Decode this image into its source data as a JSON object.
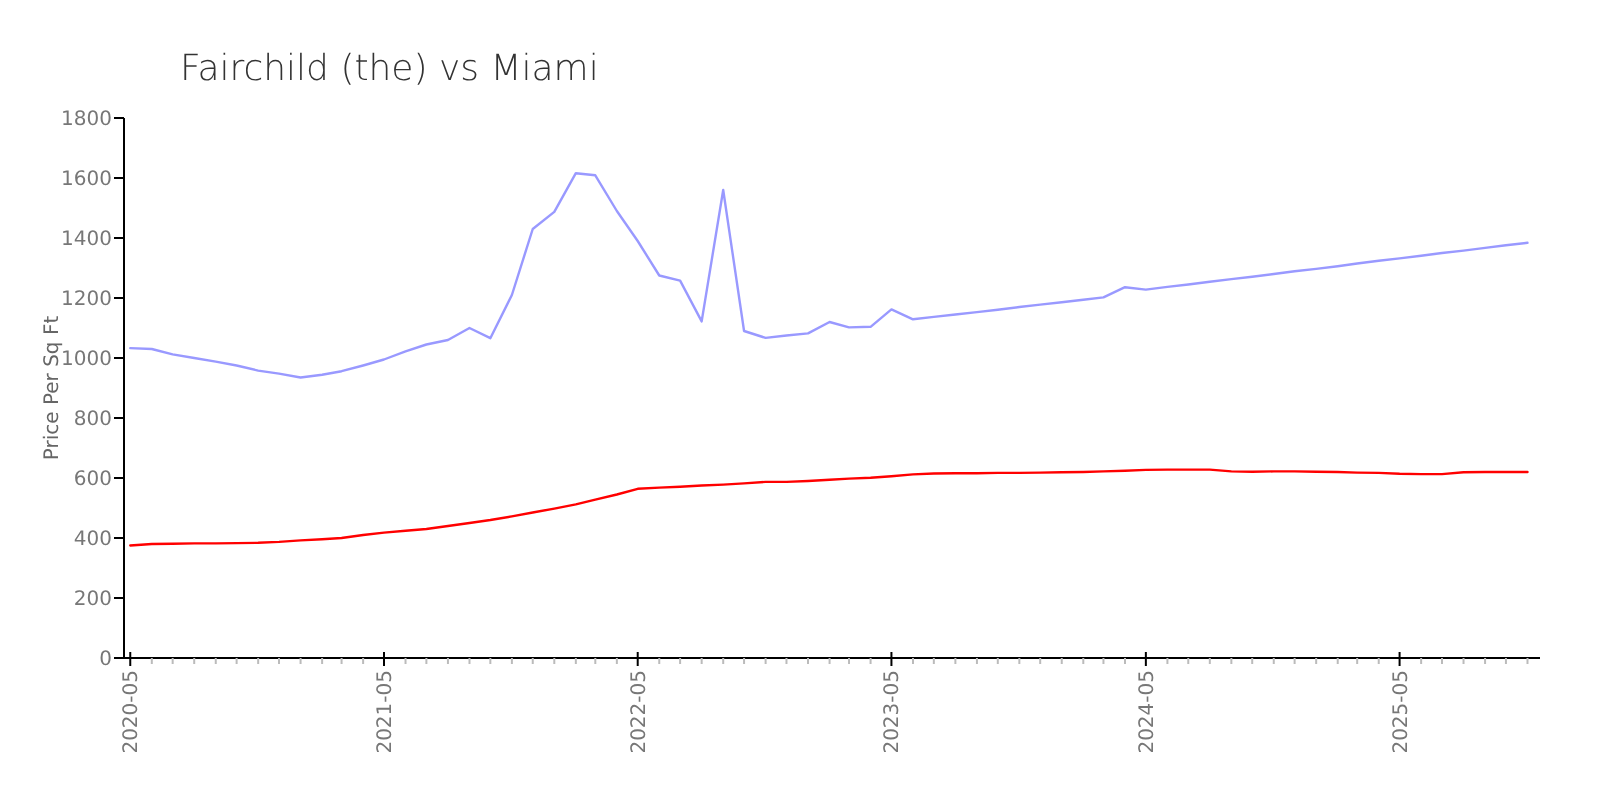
{
  "chart_data": {
    "type": "line",
    "title": "Fairchild (the) vs Miami",
    "ylabel": "Price Per Sq Ft",
    "x": [
      "2020-05",
      "2020-06",
      "2020-07",
      "2020-08",
      "2020-09",
      "2020-10",
      "2020-11",
      "2020-12",
      "2021-01",
      "2021-02",
      "2021-03",
      "2021-04",
      "2021-05",
      "2021-06",
      "2021-07",
      "2021-08",
      "2021-09",
      "2021-10",
      "2021-11",
      "2021-12",
      "2022-01",
      "2022-02",
      "2022-03",
      "2022-04",
      "2022-05",
      "2022-06",
      "2022-07",
      "2022-08",
      "2022-09",
      "2022-10",
      "2022-11",
      "2022-12",
      "2023-01",
      "2023-02",
      "2023-03",
      "2023-04",
      "2023-05",
      "2023-06",
      "2023-07",
      "2023-08",
      "2023-09",
      "2023-10",
      "2023-11",
      "2023-12",
      "2024-01",
      "2024-02",
      "2024-03",
      "2024-04",
      "2024-05",
      "2024-06",
      "2024-07",
      "2024-08",
      "2024-09",
      "2024-10",
      "2024-11",
      "2024-12",
      "2025-01",
      "2025-02",
      "2025-03",
      "2025-04",
      "2025-05",
      "2025-06",
      "2025-07",
      "2025-08",
      "2025-09",
      "2025-10",
      "2025-11"
    ],
    "series": [
      {
        "color": "#9999ff",
        "values": [
          1033,
          1030,
          1012,
          1000,
          988,
          975,
          958,
          948,
          935,
          944,
          956,
          975,
          995,
          1022,
          1045,
          1060,
          1100,
          1066,
          1210,
          1430,
          1487,
          1616,
          1609,
          1490,
          1390,
          1275,
          1258,
          1122,
          1560,
          1090,
          1067,
          1075,
          1082,
          1120,
          1102,
          1104,
          1162,
          1129,
          1137,
          1145,
          1153,
          1161,
          1170,
          1178,
          1186,
          1194,
          1202,
          1236,
          1228,
          1237,
          1245,
          1254,
          1263,
          1271,
          1280,
          1289,
          1297,
          1306,
          1315,
          1324,
          1332,
          1341,
          1350,
          1358,
          1367,
          1376,
          1384
        ]
      },
      {
        "color": "#ff0000",
        "values": [
          375,
          380,
          381,
          382,
          382,
          383,
          384,
          387,
          392,
          396,
          400,
          410,
          418,
          424,
          430,
          440,
          450,
          460,
          472,
          485,
          498,
          512,
          528,
          545,
          564,
          568,
          571,
          575,
          578,
          582,
          587,
          587,
          590,
          594,
          598,
          601,
          606,
          612,
          615,
          616,
          616,
          617,
          617,
          618,
          619,
          620,
          622,
          624,
          627,
          628,
          628,
          628,
          622,
          621,
          622,
          622,
          621,
          620,
          618,
          617,
          614,
          613,
          613,
          619,
          620,
          620,
          620
        ]
      }
    ],
    "xlim": [
      "2020-04-22",
      "2025-11-19"
    ],
    "xticks": [
      "2020-05",
      {
        "value": "2020-06",
        "label": null
      },
      {
        "value": "2020-07",
        "label": null
      },
      {
        "value": "2020-08",
        "label": null
      },
      {
        "value": "2020-09",
        "label": null
      },
      {
        "value": "2020-10",
        "label": null
      },
      {
        "value": "2020-11",
        "label": null
      },
      {
        "value": "2020-12",
        "label": null
      },
      {
        "value": "2021-01",
        "label": null
      },
      {
        "value": "2021-02",
        "label": null
      },
      {
        "value": "2021-03",
        "label": null
      },
      {
        "value": "2021-04",
        "label": null
      },
      "2021-05",
      {
        "value": "2021-06",
        "label": null
      },
      {
        "value": "2021-07",
        "label": null
      },
      {
        "value": "2021-08",
        "label": null
      },
      {
        "value": "2021-09",
        "label": null
      },
      {
        "value": "2021-10",
        "label": null
      },
      {
        "value": "2021-11",
        "label": null
      },
      {
        "value": "2021-12",
        "label": null
      },
      {
        "value": "2022-01",
        "label": null
      },
      {
        "value": "2022-02",
        "label": null
      },
      {
        "value": "2022-03",
        "label": null
      },
      {
        "value": "2022-04",
        "label": null
      },
      "2022-05",
      {
        "value": "2022-06",
        "label": null
      },
      {
        "value": "2022-07",
        "label": null
      },
      {
        "value": "2022-08",
        "label": null
      },
      {
        "value": "2022-09",
        "label": null
      },
      {
        "value": "2022-10",
        "label": null
      },
      {
        "value": "2022-11",
        "label": null
      },
      {
        "value": "2022-12",
        "label": null
      },
      {
        "value": "2023-01",
        "label": null
      },
      {
        "value": "2023-02",
        "label": null
      },
      {
        "value": "2023-03",
        "label": null
      },
      {
        "value": "2023-04",
        "label": null
      },
      "2023-05",
      {
        "value": "2023-06",
        "label": null
      },
      {
        "value": "2023-07",
        "label": null
      },
      {
        "value": "2023-08",
        "label": null
      },
      {
        "value": "2023-09",
        "label": null
      },
      {
        "value": "2023-10",
        "label": null
      },
      {
        "value": "2023-11",
        "label": null
      },
      {
        "value": "2023-12",
        "label": null
      },
      {
        "value": "2024-01",
        "label": null
      },
      {
        "value": "2024-02",
        "label": null
      },
      {
        "value": "2024-03",
        "label": null
      },
      {
        "value": "2024-04",
        "label": null
      },
      "2024-05",
      {
        "value": "2024-06",
        "label": null
      },
      {
        "value": "2024-07",
        "label": null
      },
      {
        "value": "2024-08",
        "label": null
      },
      {
        "value": "2024-09",
        "label": null
      },
      {
        "value": "2024-10",
        "label": null
      },
      {
        "value": "2024-11",
        "label": null
      },
      {
        "value": "2024-12",
        "label": null
      },
      {
        "value": "2025-01",
        "label": null
      },
      {
        "value": "2025-02",
        "label": null
      },
      {
        "value": "2025-03",
        "label": null
      },
      {
        "value": "2025-04",
        "label": null
      },
      "2025-05",
      {
        "value": "2025-06",
        "label": null
      },
      {
        "value": "2025-07",
        "label": null
      },
      {
        "value": "2025-08",
        "label": null
      },
      {
        "value": "2025-09",
        "label": null
      },
      {
        "value": "2025-10",
        "label": null
      },
      {
        "value": "2025-11",
        "label": null
      }
    ],
    "ylim": [
      0,
      1800
    ],
    "yticks": [
      0,
      200,
      400,
      600,
      800,
      1000,
      1200,
      1400,
      1600,
      1800
    ]
  }
}
